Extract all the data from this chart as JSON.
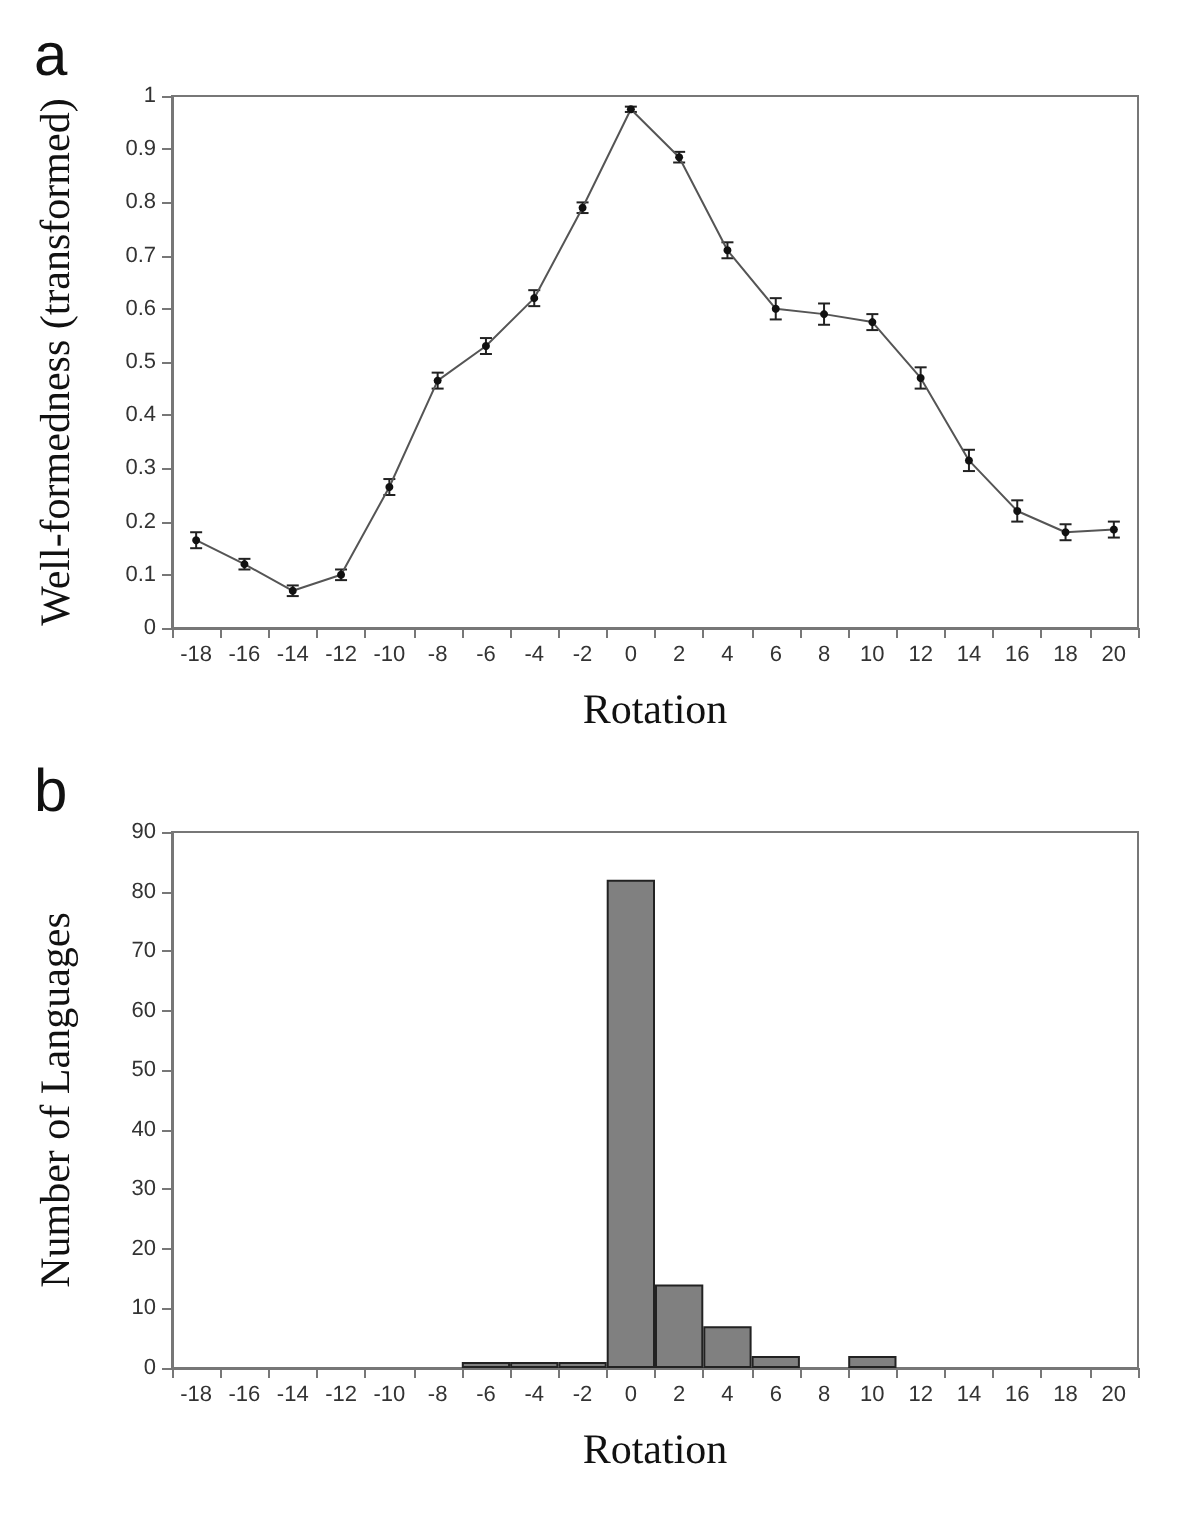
{
  "chart_data": [
    {
      "type": "line",
      "title": "a",
      "xlabel": "Rotation",
      "ylabel": "Well-formedness (transformed)",
      "categories": [
        "-18",
        "-16",
        "-14",
        "-12",
        "-10",
        "-8",
        "-6",
        "-4",
        "-2",
        "0",
        "2",
        "4",
        "6",
        "8",
        "10",
        "12",
        "14",
        "16",
        "18",
        "20"
      ],
      "series": [
        {
          "color": "#555555",
          "values": [
            0.165,
            0.12,
            0.07,
            0.1,
            0.265,
            0.465,
            0.53,
            0.62,
            0.79,
            0.975,
            0.885,
            0.71,
            0.6,
            0.59,
            0.575,
            0.47,
            0.315,
            0.22,
            0.18,
            0.185
          ],
          "errors": [
            0.015,
            0.01,
            0.01,
            0.01,
            0.015,
            0.015,
            0.015,
            0.015,
            0.01,
            0.005,
            0.01,
            0.015,
            0.02,
            0.02,
            0.015,
            0.02,
            0.02,
            0.02,
            0.015,
            0.015
          ]
        }
      ],
      "ylim": [
        0,
        1
      ],
      "yticks": [
        0,
        0.1,
        0.2,
        0.3,
        0.4,
        0.5,
        0.6,
        0.7,
        0.8,
        0.9,
        1
      ],
      "grid": false,
      "marker": "circle",
      "line_style": "solid"
    },
    {
      "type": "bar",
      "title": "b",
      "xlabel": "Rotation",
      "ylabel": "Number of Languages",
      "categories": [
        "-18",
        "-16",
        "-14",
        "-12",
        "-10",
        "-8",
        "-6",
        "-4",
        "-2",
        "0",
        "2",
        "4",
        "6",
        "8",
        "10",
        "12",
        "14",
        "16",
        "18",
        "20"
      ],
      "series": [
        {
          "color": "#808080",
          "values": [
            0,
            0,
            0,
            0,
            0,
            0,
            1,
            1,
            1,
            82,
            14,
            7,
            2,
            0,
            2,
            0,
            0,
            0,
            0,
            0
          ]
        }
      ],
      "ylim": [
        0,
        90
      ],
      "yticks": [
        0,
        10,
        20,
        30,
        40,
        50,
        60,
        70,
        80,
        90
      ],
      "grid": false
    }
  ]
}
